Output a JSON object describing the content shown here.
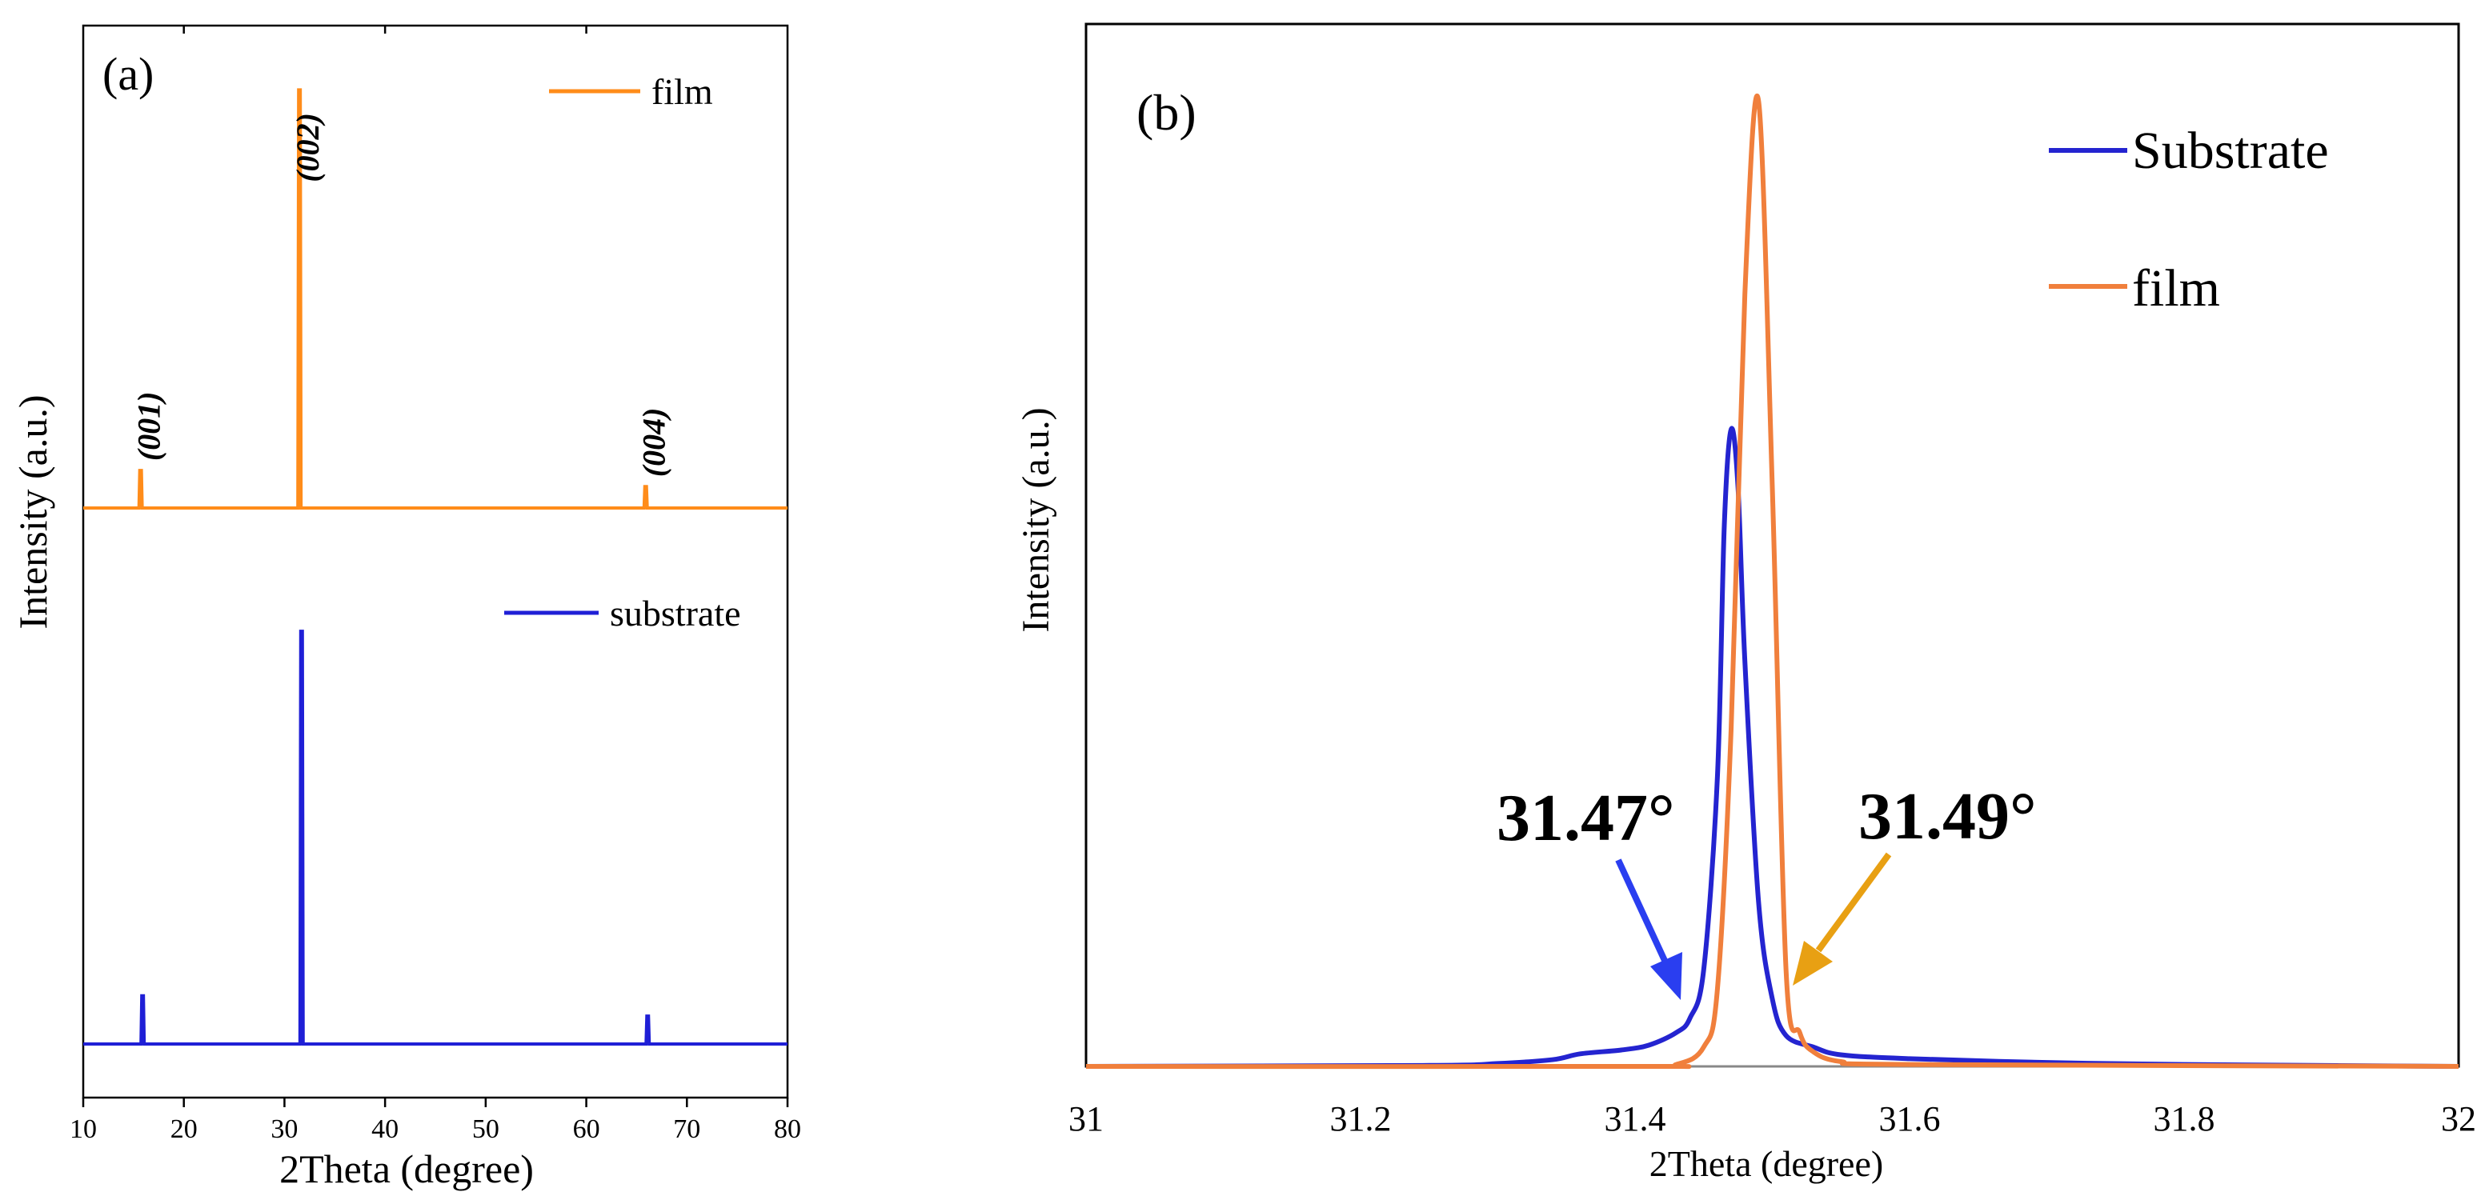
{
  "chart_data": [
    {
      "panel_label": "(a)",
      "type": "line",
      "xlabel": "2Theta (degree)",
      "ylabel": "Intensity (a.u.)",
      "xlim": [
        10,
        80
      ],
      "xticks": [
        10,
        20,
        30,
        40,
        50,
        60,
        70,
        80
      ],
      "ylim": [
        0,
        1
      ],
      "yticks_shown": false,
      "colors": {
        "film": "#ff8c1a",
        "substrate": "#1f1fd6"
      },
      "series": [
        {
          "name": "film",
          "legend_label": "film",
          "baseline": 0.55,
          "peaks": [
            {
              "x": 15.7,
              "height": 0.035,
              "label": "(001)"
            },
            {
              "x": 31.49,
              "height": 0.39,
              "label": "(002)"
            },
            {
              "x": 65.9,
              "height": 0.02,
              "label": "(004)"
            }
          ]
        },
        {
          "name": "substrate",
          "legend_label": "substrate",
          "baseline": 0.05,
          "peaks": [
            {
              "x": 15.9,
              "height": 0.045
            },
            {
              "x": 31.7,
              "height": 0.385
            },
            {
              "x": 66.1,
              "height": 0.026
            }
          ]
        }
      ]
    },
    {
      "panel_label": "(b)",
      "type": "line",
      "xlabel": "2Theta (degree)",
      "ylabel": "Intensity (a.u.)",
      "xlim": [
        31,
        32
      ],
      "xticks": [
        31,
        31.2,
        31.4,
        31.6,
        31.8,
        32
      ],
      "ylim": [
        0,
        1.08
      ],
      "yticks_shown": false,
      "colors": {
        "Substrate": "#2424d0",
        "film": "#f07f3c",
        "arrow_substrate": "#2a3ef0",
        "arrow_film": "#e8a013"
      },
      "series": [
        {
          "name": "Substrate",
          "legend_label": "Substrate",
          "peak_center": 31.47,
          "peak_height": 0.66,
          "points": [
            [
              31.0,
              0.0
            ],
            [
              31.25,
              0.001
            ],
            [
              31.3,
              0.003
            ],
            [
              31.34,
              0.007
            ],
            [
              31.36,
              0.013
            ],
            [
              31.39,
              0.017
            ],
            [
              31.41,
              0.022
            ],
            [
              31.43,
              0.035
            ],
            [
              31.44,
              0.05
            ],
            [
              31.45,
              0.1
            ],
            [
              31.46,
              0.3
            ],
            [
              31.465,
              0.56
            ],
            [
              31.47,
              0.66
            ],
            [
              31.475,
              0.6
            ],
            [
              31.48,
              0.42
            ],
            [
              31.49,
              0.17
            ],
            [
              31.5,
              0.07
            ],
            [
              31.51,
              0.032
            ],
            [
              31.53,
              0.02
            ],
            [
              31.55,
              0.012
            ],
            [
              31.6,
              0.008
            ],
            [
              31.7,
              0.004
            ],
            [
              31.8,
              0.002
            ],
            [
              32.0,
              0.0
            ]
          ]
        },
        {
          "name": "film",
          "legend_label": "film",
          "peak_center": 31.49,
          "peak_height": 1.0,
          "points": [
            [
              31.0,
              0.0
            ],
            [
              31.4,
              0.0
            ],
            [
              31.43,
              0.002
            ],
            [
              31.45,
              0.02
            ],
            [
              31.46,
              0.08
            ],
            [
              31.47,
              0.35
            ],
            [
              31.48,
              0.8
            ],
            [
              31.49,
              1.0
            ],
            [
              31.5,
              0.6
            ],
            [
              31.51,
              0.1
            ],
            [
              31.52,
              0.035
            ],
            [
              31.53,
              0.015
            ],
            [
              31.55,
              0.005
            ],
            [
              31.6,
              0.002
            ],
            [
              32.0,
              0.0
            ]
          ]
        }
      ],
      "annotations": [
        {
          "text": "31.47°",
          "target": "Substrate",
          "x": 31.47
        },
        {
          "text": "31.49°",
          "target": "film",
          "x": 31.49
        }
      ]
    }
  ]
}
